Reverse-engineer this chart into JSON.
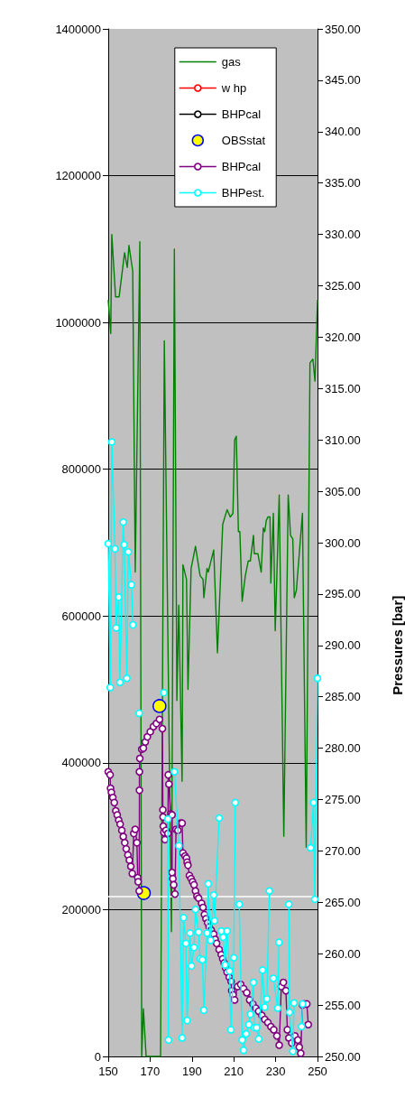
{
  "chart_data": {
    "type": "line",
    "y2label": "Pressures [bar]",
    "xlim": [
      150,
      250
    ],
    "xticks": [
      150,
      170,
      190,
      210,
      230,
      250
    ],
    "ylim": [
      0,
      1400000
    ],
    "yticks": [
      0,
      200000,
      400000,
      600000,
      800000,
      1000000,
      1200000,
      1400000
    ],
    "y2lim": [
      250,
      350
    ],
    "y2ticks": [
      {
        "value": 250,
        "label": "250.00"
      },
      {
        "value": 255,
        "label": "255.00"
      },
      {
        "value": 260,
        "label": "260.00"
      },
      {
        "value": 265,
        "label": "265.00"
      },
      {
        "value": 270,
        "label": "270.00"
      },
      {
        "value": 275,
        "label": "275.00"
      },
      {
        "value": 280,
        "label": "280.00"
      },
      {
        "value": 285,
        "label": "285.00"
      },
      {
        "value": 290,
        "label": "290.00"
      },
      {
        "value": 295,
        "label": "295.00"
      },
      {
        "value": 300,
        "label": "300.00"
      },
      {
        "value": 305,
        "label": "305.00"
      },
      {
        "value": 310,
        "label": "310.00"
      },
      {
        "value": 315,
        "label": "315.00"
      },
      {
        "value": 320,
        "label": "320.00"
      },
      {
        "value": 325,
        "label": "325.00"
      },
      {
        "value": 330,
        "label": "330.00"
      },
      {
        "value": 335,
        "label": "335.00"
      },
      {
        "value": 340,
        "label": "340.00"
      },
      {
        "value": 345,
        "label": "345.00"
      },
      {
        "value": 350,
        "label": "350.00"
      }
    ],
    "grid": "y",
    "legend": "top",
    "ref_lines": [
      {
        "axis": "y2",
        "value": 265.6,
        "color": "#ffffff"
      }
    ],
    "series": [
      {
        "name": "gas",
        "color": "#008000",
        "marker": "none",
        "x": [
          150.0,
          151.2,
          151.7,
          153.5,
          155.2,
          157.8,
          159.1,
          159.9,
          161.7,
          162.9,
          165.1,
          166.0,
          166.8,
          168.1,
          175.0,
          176.8,
          180.2,
          181.6,
          182.8,
          183.7,
          185.3,
          185.7,
          187.4,
          188.1,
          189.6,
          191.7,
          193.9,
          195.3,
          195.7,
          197.2,
          197.8,
          200.4,
          202.2,
          204.7,
          206.8,
          208.3,
          209.6,
          210.4,
          211.2,
          212.2,
          212.9,
          214.0,
          215.5,
          216.9,
          217.9,
          219.4,
          219.8,
          221.5,
          223.1,
          224.1,
          224.8,
          225.5,
          226.3,
          227.3,
          227.7,
          228.9,
          229.8,
          231.7,
          233.9,
          236.0,
          237.1,
          238.2,
          238.9,
          239.9,
          242.8,
          244.6,
          246.4,
          247.8,
          248.8,
          250.0
        ],
        "values": [
          1030000,
          985000,
          1120000,
          1035000,
          1035000,
          1095000,
          1075000,
          1105000,
          1070000,
          660000,
          1110000,
          0,
          65000,
          0,
          0,
          975000,
          170000,
          1100000,
          485000,
          615000,
          375000,
          670000,
          650000,
          500000,
          665000,
          695000,
          655000,
          650000,
          625000,
          665000,
          660000,
          690000,
          550000,
          725000,
          745000,
          735000,
          740000,
          840000,
          845000,
          715000,
          715000,
          620000,
          655000,
          675000,
          675000,
          710000,
          685000,
          685000,
          660000,
          720000,
          715000,
          730000,
          735000,
          735000,
          645000,
          740000,
          580000,
          765000,
          300000,
          765000,
          710000,
          705000,
          625000,
          635000,
          740000,
          285000,
          945000,
          950000,
          920000,
          1030000
        ]
      },
      {
        "name": "w hp",
        "color": "#ff0000",
        "marker": "circle",
        "axis": "y2"
      },
      {
        "name": "BHPcal",
        "color": "#000000",
        "marker": "circle",
        "axis": "y2"
      },
      {
        "name": "OBSstat",
        "type": "scatter",
        "color": "#ffff00",
        "marker": "circle",
        "axis": "y2",
        "x": [
          167.0,
          174.5
        ],
        "values": [
          265.9,
          284.1
        ]
      },
      {
        "name": "BHPcal",
        "color": "#800080",
        "marker": "circle",
        "axis": "y2",
        "x": [
          150.0,
          150.9,
          151.1,
          151.5,
          152.2,
          152.9,
          153.6,
          154.3,
          155.0,
          155.7,
          156.5,
          157.2,
          157.9,
          158.6,
          159.4,
          160.1,
          160.8,
          161.5,
          162.2,
          162.9,
          163.7,
          164.1,
          164.3,
          164.8,
          164.9,
          164.9,
          165.1,
          166.0,
          166.8,
          167.7,
          168.7,
          170.1,
          171.6,
          173.0,
          174.5,
          175.9,
          176.1,
          176.2,
          176.3,
          176.6,
          177.1,
          177.6,
          178.5,
          178.7,
          179.0,
          179.9,
          180.5,
          180.5,
          180.9,
          181.3,
          181.9,
          182.4,
          183.3,
          184.5,
          185.3,
          185.7,
          186.7,
          187.4,
          187.7,
          188.1,
          188.8,
          189.6,
          190.3,
          191.0,
          191.7,
          192.4,
          193.2,
          194.6,
          195.3,
          196.0,
          196.7,
          197.5,
          198.2,
          199.2,
          200.4,
          201.1,
          201.8,
          203.0,
          204.0,
          204.7,
          205.4,
          206.1,
          206.8,
          207.8,
          208.7,
          209.0,
          209.7,
          210.4,
          211.8,
          213.3,
          214.7,
          216.2,
          217.6,
          219.1,
          220.5,
          221.9,
          223.4,
          224.8,
          226.3,
          227.7,
          229.1,
          230.6,
          231.7,
          232.7,
          233.7,
          234.9,
          235.6,
          236.3,
          237.7,
          239.2,
          240.6,
          241.3,
          242.0,
          242.8,
          243.5,
          244.9,
          245.6
        ],
        "values": [
          277.7,
          277.4,
          276.1,
          275.7,
          275.2,
          274.7,
          273.9,
          273.5,
          273.0,
          272.6,
          272.0,
          271.4,
          270.8,
          270.2,
          269.6,
          269.1,
          268.5,
          267.8,
          271.7,
          272.1,
          270.8,
          267.4,
          267.0,
          266.1,
          275.9,
          277.7,
          279.0,
          279.9,
          280.0,
          280.6,
          281.1,
          281.6,
          282.1,
          282.4,
          282.8,
          281.9,
          274.0,
          273.3,
          272.4,
          271.8,
          271.1,
          272.0,
          271.7,
          277.4,
          276.5,
          273.6,
          273.5,
          267.9,
          267.3,
          266.7,
          265.8,
          272.1,
          272.0,
          272.7,
          272.7,
          269.8,
          269.5,
          269.3,
          268.9,
          268.6,
          267.6,
          267.3,
          267.0,
          266.7,
          266.1,
          265.6,
          265.4,
          264.9,
          264.5,
          263.8,
          263.4,
          263.0,
          262.6,
          262.3,
          261.9,
          261.4,
          261.0,
          260.4,
          259.9,
          259.5,
          259.1,
          258.6,
          258.2,
          257.7,
          257.3,
          256.4,
          256.0,
          255.5,
          256.8,
          257.0,
          256.6,
          256.2,
          255.5,
          255.1,
          254.7,
          254.4,
          254.0,
          253.6,
          253.3,
          252.9,
          252.6,
          252.0,
          251.1,
          256.8,
          257.2,
          256.4,
          252.6,
          251.8,
          251.3,
          252.0,
          251.6,
          250.9,
          250.3,
          255.0,
          255.1,
          255.1,
          253.1
        ]
      },
      {
        "name": "BHPest.",
        "color": "#00ffff",
        "marker": "circle",
        "axis": "y2",
        "x": [
          150.0,
          151.0,
          151.7,
          153.2,
          153.8,
          155.0,
          155.6,
          157.2,
          157.6,
          158.9,
          159.6,
          161.1,
          161.8,
          163.0,
          164.8,
          170.0,
          176.6,
          177.5,
          178.5,
          178.8,
          180.5,
          181.6,
          183.8,
          185.3,
          186.0,
          187.1,
          187.7,
          189.1,
          189.8,
          191.0,
          191.7,
          193.2,
          193.9,
          195.0,
          195.7,
          197.2,
          197.8,
          198.9,
          200.4,
          200.8,
          203.0,
          203.5,
          204.0,
          204.9,
          205.8,
          206.8,
          208.0,
          208.6,
          210.0,
          210.7,
          211.2,
          212.6,
          214.0,
          214.7,
          215.9,
          217.2,
          217.9,
          219.4,
          219.8,
          220.9,
          221.9,
          223.7,
          224.8,
          225.8,
          227.0,
          227.5,
          228.9,
          231.0,
          231.6,
          232.5,
          236.3,
          236.6,
          238.2,
          238.8,
          240.5,
          242.4,
          242.9,
          245.0,
          246.7,
          248.1,
          248.7,
          250.0
        ],
        "values": [
          299.9,
          285.9,
          309.8,
          299.4,
          291.7,
          294.7,
          286.4,
          302.0,
          299.8,
          286.8,
          299.1,
          295.9,
          292.0,
          null,
          283.4,
          null,
          285.4,
          null,
          273.1,
          251.6,
          null,
          277.7,
          270.5,
          251.8,
          263.5,
          261.0,
          253.5,
          262.0,
          258.8,
          260.6,
          264.3,
          262.1,
          259.5,
          259.4,
          254.5,
          262.0,
          266.8,
          261.3,
          265.7,
          263.2,
          273.2,
          null,
          262.2,
          261.6,
          258.9,
          262.2,
          258.3,
          252.6,
          259.6,
          274.7,
          null,
          264.8,
          251.6,
          250.6,
          252.2,
          253.1,
          254.1,
          257.2,
          252.8,
          252.8,
          251.7,
          258.4,
          254.8,
          255.6,
          266.1,
          null,
          257.6,
          254.7,
          261.1,
          null,
          264.8,
          254.3,
          250.5,
          255.2,
          null,
          252.9,
          255.1,
          null,
          270.3,
          274.7,
          265.3,
          286.8
        ]
      }
    ]
  }
}
